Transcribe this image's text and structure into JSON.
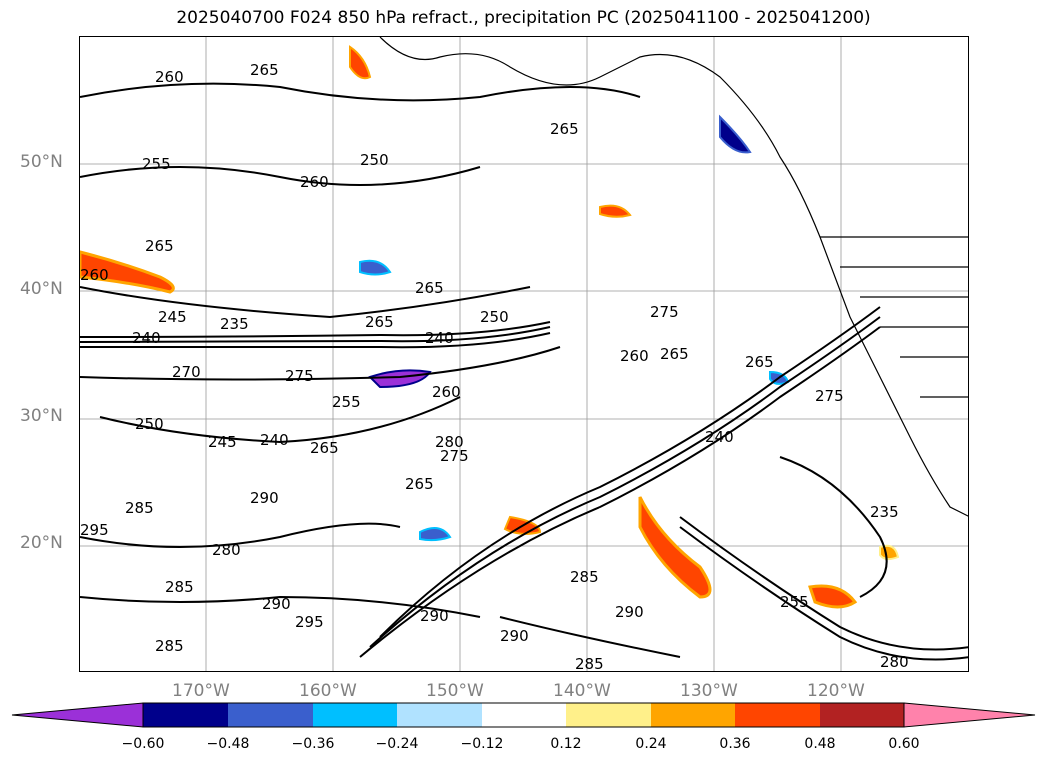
{
  "title": "2025040700 F024 850 hPa refract., precipitation PC (2025041100 - 2025041200)",
  "map": {
    "lat_labels": [
      "50°N",
      "40°N",
      "30°N",
      "20°N"
    ],
    "lon_labels": [
      "170°W",
      "160°W",
      "150°W",
      "140°W",
      "130°W",
      "120°W"
    ],
    "contour_labels": [
      "260",
      "265",
      "265",
      "255",
      "250",
      "260",
      "265",
      "265",
      "275",
      "260",
      "245",
      "240",
      "235",
      "265",
      "240",
      "250",
      "260",
      "265",
      "270",
      "275",
      "260",
      "255",
      "250",
      "245",
      "240",
      "265",
      "280",
      "275",
      "265",
      "290",
      "295",
      "285",
      "280",
      "285",
      "290",
      "295",
      "285",
      "290",
      "290",
      "285",
      "235",
      "240",
      "265",
      "275",
      "290",
      "285",
      "280",
      "255"
    ]
  },
  "colorbar": {
    "ticks": [
      "−0.60",
      "−0.48",
      "−0.36",
      "−0.24",
      "−0.12",
      "0.12",
      "0.24",
      "0.36",
      "0.48",
      "0.60"
    ],
    "colors": [
      "#9b30d8",
      "#00008b",
      "#3a5fcd",
      "#00bfff",
      "#b0e2ff",
      "#ffffff",
      "#fff08a",
      "#ffa500",
      "#ff4500",
      "#b22222",
      "#ff82ab"
    ]
  }
}
